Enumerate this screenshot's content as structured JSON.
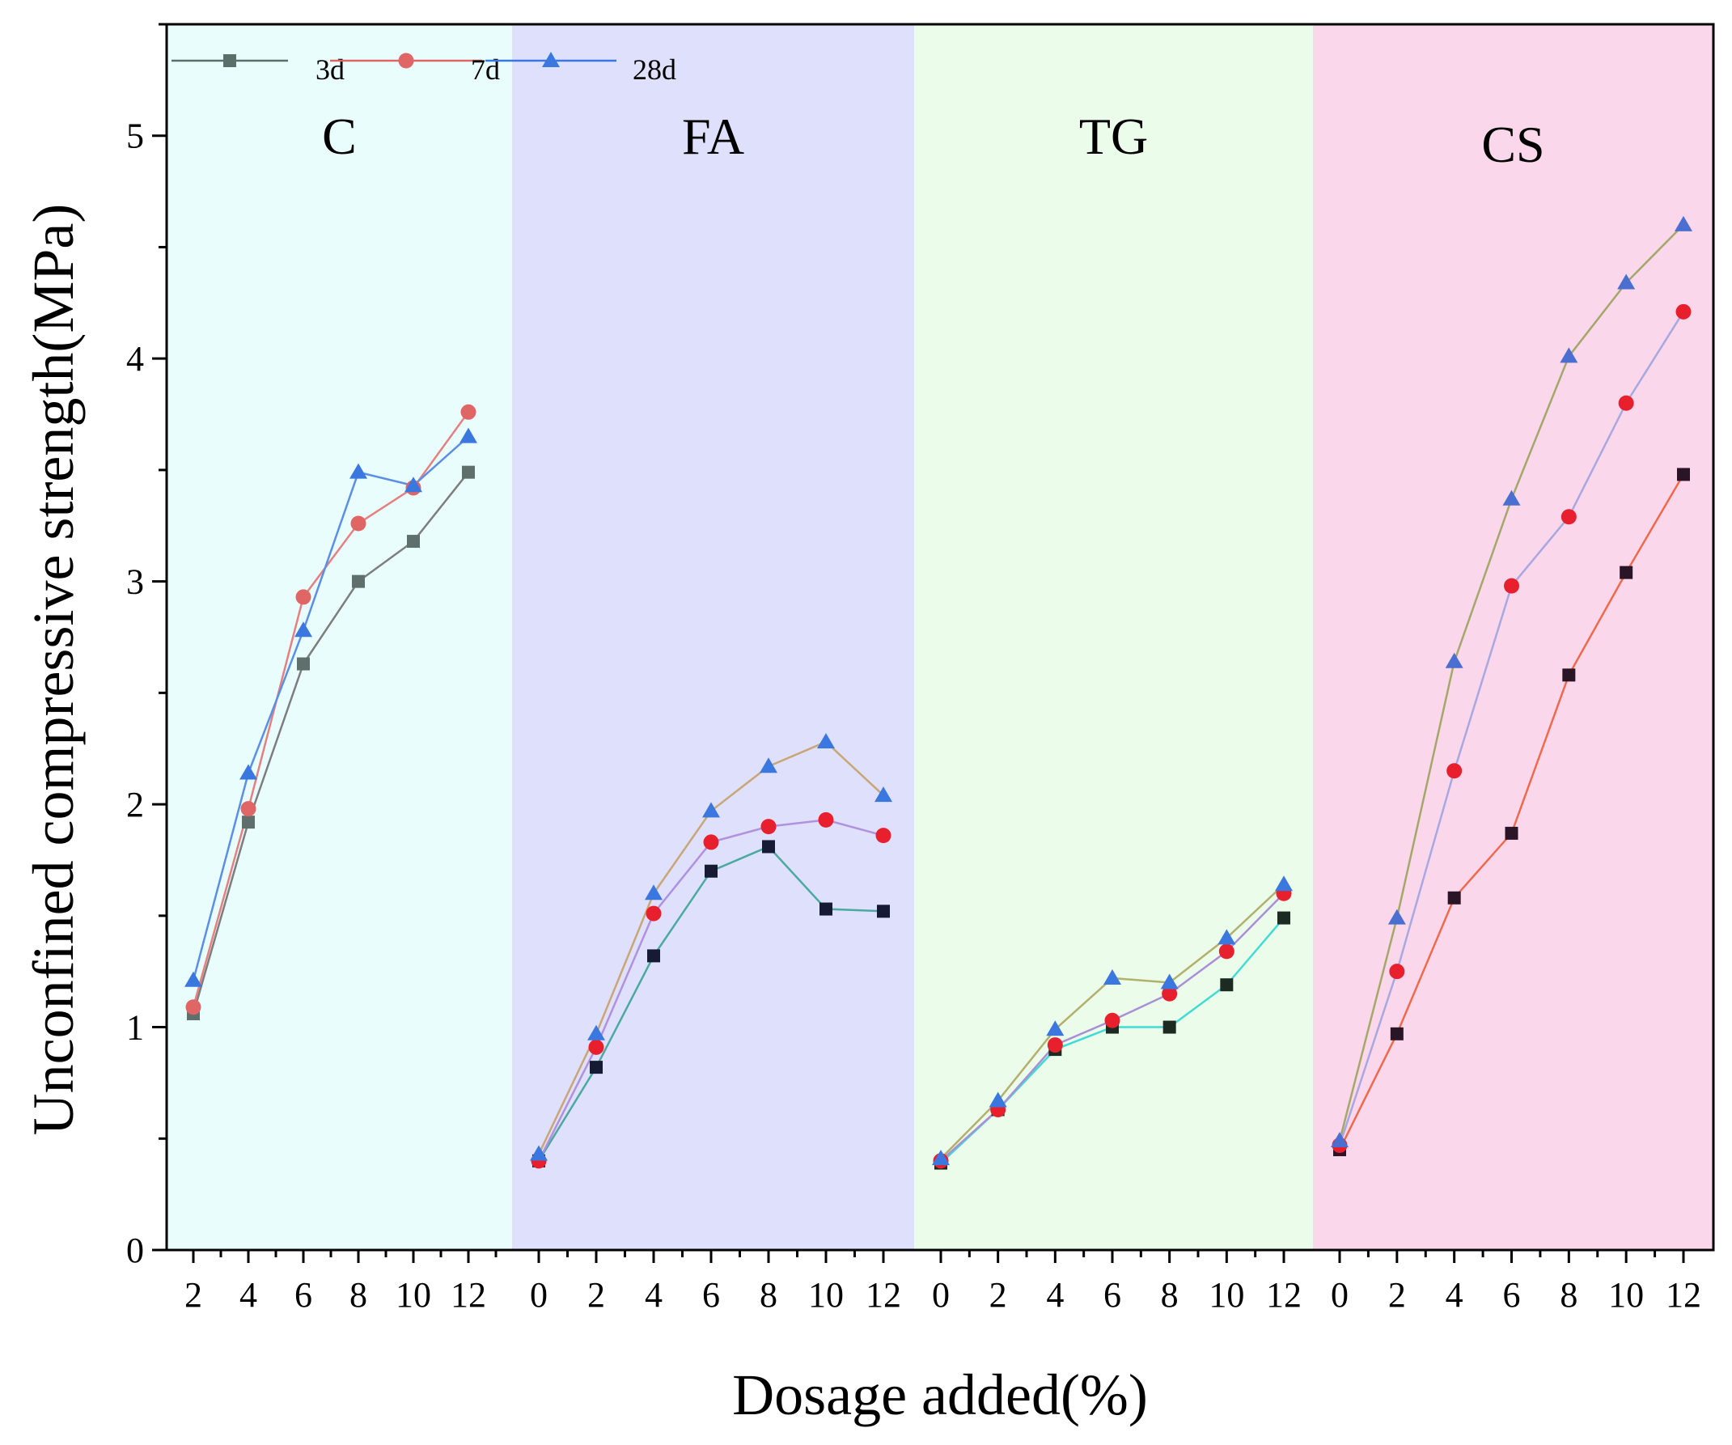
{
  "chart_data": {
    "type": "line",
    "xlabel": "Dosage added(%)",
    "ylabel": "Unconfined compressive strength(MPa)",
    "ylim": [
      0,
      5.5
    ],
    "y_ticks": [
      0,
      1,
      2,
      3,
      4,
      5
    ],
    "legend": {
      "placement": "top-left",
      "entries": [
        {
          "name": "3d",
          "marker": "square",
          "color": "#5a6e6a"
        },
        {
          "name": "7d",
          "marker": "circle",
          "color": "#e06666"
        },
        {
          "name": "28d",
          "marker": "triangle",
          "color": "#3a78e0"
        }
      ]
    },
    "groups": [
      {
        "label": "C",
        "background": "#e9fdfc",
        "x": [
          2,
          4,
          6,
          8,
          10,
          12
        ],
        "series": [
          {
            "name": "3d",
            "marker": "square",
            "marker_color": "#5f706c",
            "line_color": "#7d7d7d",
            "values": [
              1.06,
              1.92,
              2.63,
              3.0,
              3.18,
              3.49
            ]
          },
          {
            "name": "7d",
            "marker": "circle",
            "marker_color": "#e06666",
            "line_color": "#e58080",
            "values": [
              1.09,
              1.98,
              2.93,
              3.26,
              3.42,
              3.76
            ]
          },
          {
            "name": "28d",
            "marker": "triangle",
            "marker_color": "#3a78e0",
            "line_color": "#5a8fe5",
            "values": [
              1.21,
              2.14,
              2.78,
              3.49,
              3.43,
              3.65
            ]
          }
        ]
      },
      {
        "label": "FA",
        "background": "#dfe0fb",
        "x": [
          0,
          2,
          4,
          6,
          8,
          10,
          12
        ],
        "series": [
          {
            "name": "3d",
            "marker": "square",
            "marker_color": "#161a33",
            "line_color": "#4aaaa0",
            "values": [
              0.4,
              0.82,
              1.32,
              1.7,
              1.81,
              1.53,
              1.52
            ]
          },
          {
            "name": "7d",
            "marker": "circle",
            "marker_color": "#e8202e",
            "line_color": "#b091e0",
            "values": [
              0.4,
              0.91,
              1.51,
              1.83,
              1.9,
              1.93,
              1.86
            ]
          },
          {
            "name": "28d",
            "marker": "triangle",
            "marker_color": "#3a78e0",
            "line_color": "#c9a678",
            "values": [
              0.43,
              0.97,
              1.6,
              1.97,
              2.17,
              2.28,
              2.04
            ]
          }
        ]
      },
      {
        "label": "TG",
        "background": "#ebfcea",
        "x": [
          0,
          2,
          4,
          6,
          8,
          10,
          12
        ],
        "series": [
          {
            "name": "3d",
            "marker": "square",
            "marker_color": "#1c2a22",
            "line_color": "#40dcd4",
            "values": [
              0.39,
              0.63,
              0.9,
              1.0,
              1.0,
              1.19,
              1.49
            ]
          },
          {
            "name": "7d",
            "marker": "circle",
            "marker_color": "#e8202e",
            "line_color": "#a98fd5",
            "values": [
              0.4,
              0.63,
              0.92,
              1.03,
              1.15,
              1.34,
              1.6
            ]
          },
          {
            "name": "28d",
            "marker": "triangle",
            "marker_color": "#3a78e0",
            "line_color": "#b3b06e",
            "values": [
              0.41,
              0.67,
              0.99,
              1.22,
              1.2,
              1.4,
              1.64
            ]
          }
        ]
      },
      {
        "label": "CS",
        "background": "#fad7eb",
        "x": [
          0,
          2,
          4,
          6,
          8,
          10,
          12
        ],
        "series": [
          {
            "name": "3d",
            "marker": "square",
            "marker_color": "#2a1526",
            "line_color": "#ee6a4a",
            "values": [
              0.45,
              0.97,
              1.58,
              1.87,
              2.58,
              3.04,
              3.48
            ]
          },
          {
            "name": "7d",
            "marker": "circle",
            "marker_color": "#e8202e",
            "line_color": "#a8a8e0",
            "values": [
              0.47,
              1.25,
              2.15,
              2.98,
              3.29,
              3.8,
              4.21
            ]
          },
          {
            "name": "28d",
            "marker": "triangle",
            "marker_color": "#4a6fd0",
            "line_color": "#a3a868",
            "values": [
              0.49,
              1.49,
              2.64,
              3.37,
              4.01,
              4.34,
              4.6
            ]
          }
        ]
      }
    ]
  }
}
